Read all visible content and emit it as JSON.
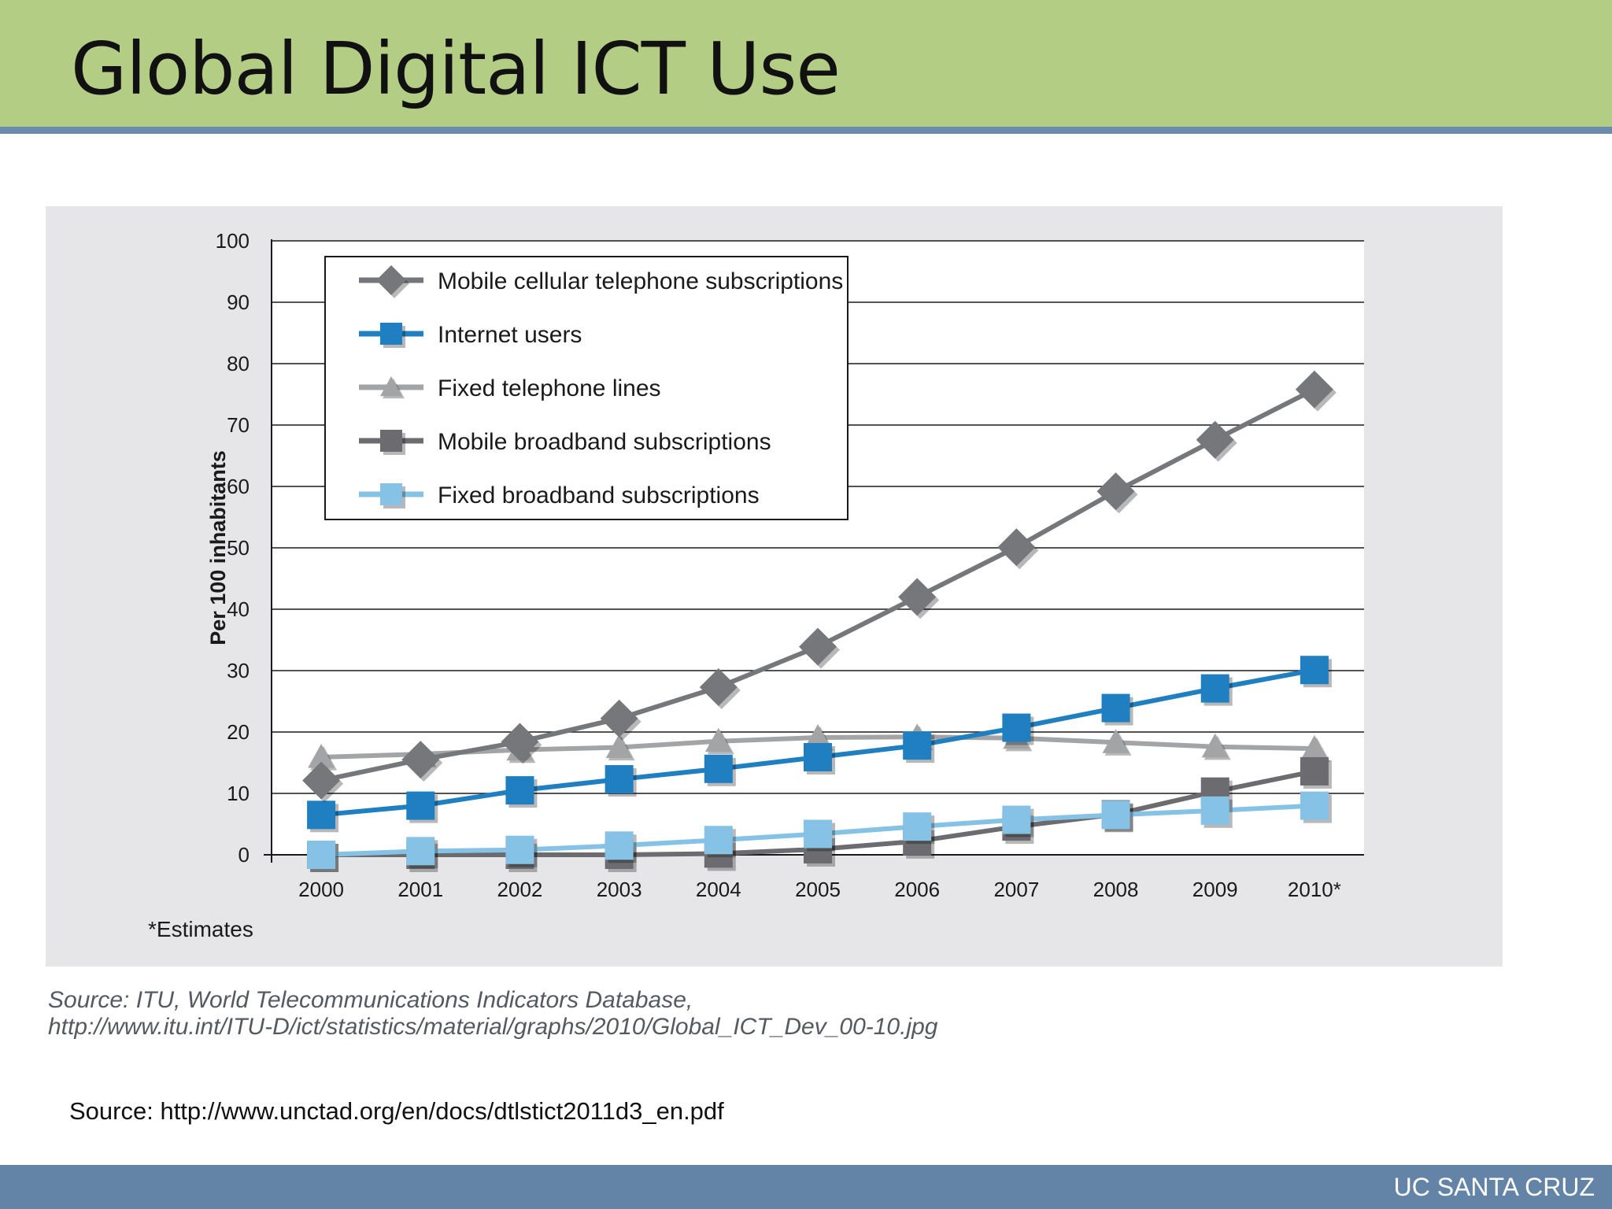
{
  "slide": {
    "title": "Global Digital ICT Use",
    "source_line_1": "Source: ITU, World Telecommunications Indicators Database,",
    "source_line_2": "http://www.itu.int/ITU-D/ict/statistics/material/graphs/2010/Global_ICT_Dev_00-10.jpg",
    "source_bottom": "Source: http://www.unctad.org/en/docs/dtlstict2011d3_en.pdf",
    "footer": "UC SANTA CRUZ"
  },
  "chart_data": {
    "type": "line",
    "ylabel": "Per 100 inhabitants",
    "ylim": [
      0,
      100
    ],
    "yticks": [
      0,
      10,
      20,
      30,
      40,
      50,
      60,
      70,
      80,
      90,
      100
    ],
    "categories": [
      "2000",
      "2001",
      "2002",
      "2003",
      "2004",
      "2005",
      "2006",
      "2007",
      "2008",
      "2009",
      "2010*"
    ],
    "note": "*Estimates",
    "grid": true,
    "legend_position": "top-left",
    "series": [
      {
        "name": "Mobile cellular telephone subscriptions",
        "marker": "diamond",
        "color": "#76777b",
        "values": [
          12.1,
          15.5,
          18.4,
          22.2,
          27.3,
          33.9,
          42.0,
          50.1,
          59.2,
          67.6,
          75.8
        ]
      },
      {
        "name": "Internet users",
        "marker": "square",
        "color": "#1f7fc0",
        "values": [
          6.5,
          8.0,
          10.5,
          12.3,
          14.0,
          15.9,
          17.8,
          20.7,
          23.9,
          27.1,
          30.1
        ]
      },
      {
        "name": "Fixed telephone lines",
        "marker": "triangle",
        "color": "#a3a4a6",
        "values": [
          15.9,
          16.4,
          17.1,
          17.5,
          18.5,
          19.1,
          19.2,
          19.0,
          18.3,
          17.6,
          17.3
        ]
      },
      {
        "name": "Mobile broadband subscriptions",
        "marker": "square",
        "color": "#6c6c70",
        "values": [
          0.0,
          0.0,
          0.0,
          0.0,
          0.2,
          0.9,
          2.2,
          4.6,
          6.6,
          10.3,
          13.6
        ]
      },
      {
        "name": "Fixed broadband subscriptions",
        "marker": "square",
        "color": "#86c2e6",
        "values": [
          0.0,
          0.6,
          0.8,
          1.5,
          2.4,
          3.4,
          4.6,
          5.7,
          6.5,
          7.2,
          8.0
        ]
      }
    ]
  }
}
